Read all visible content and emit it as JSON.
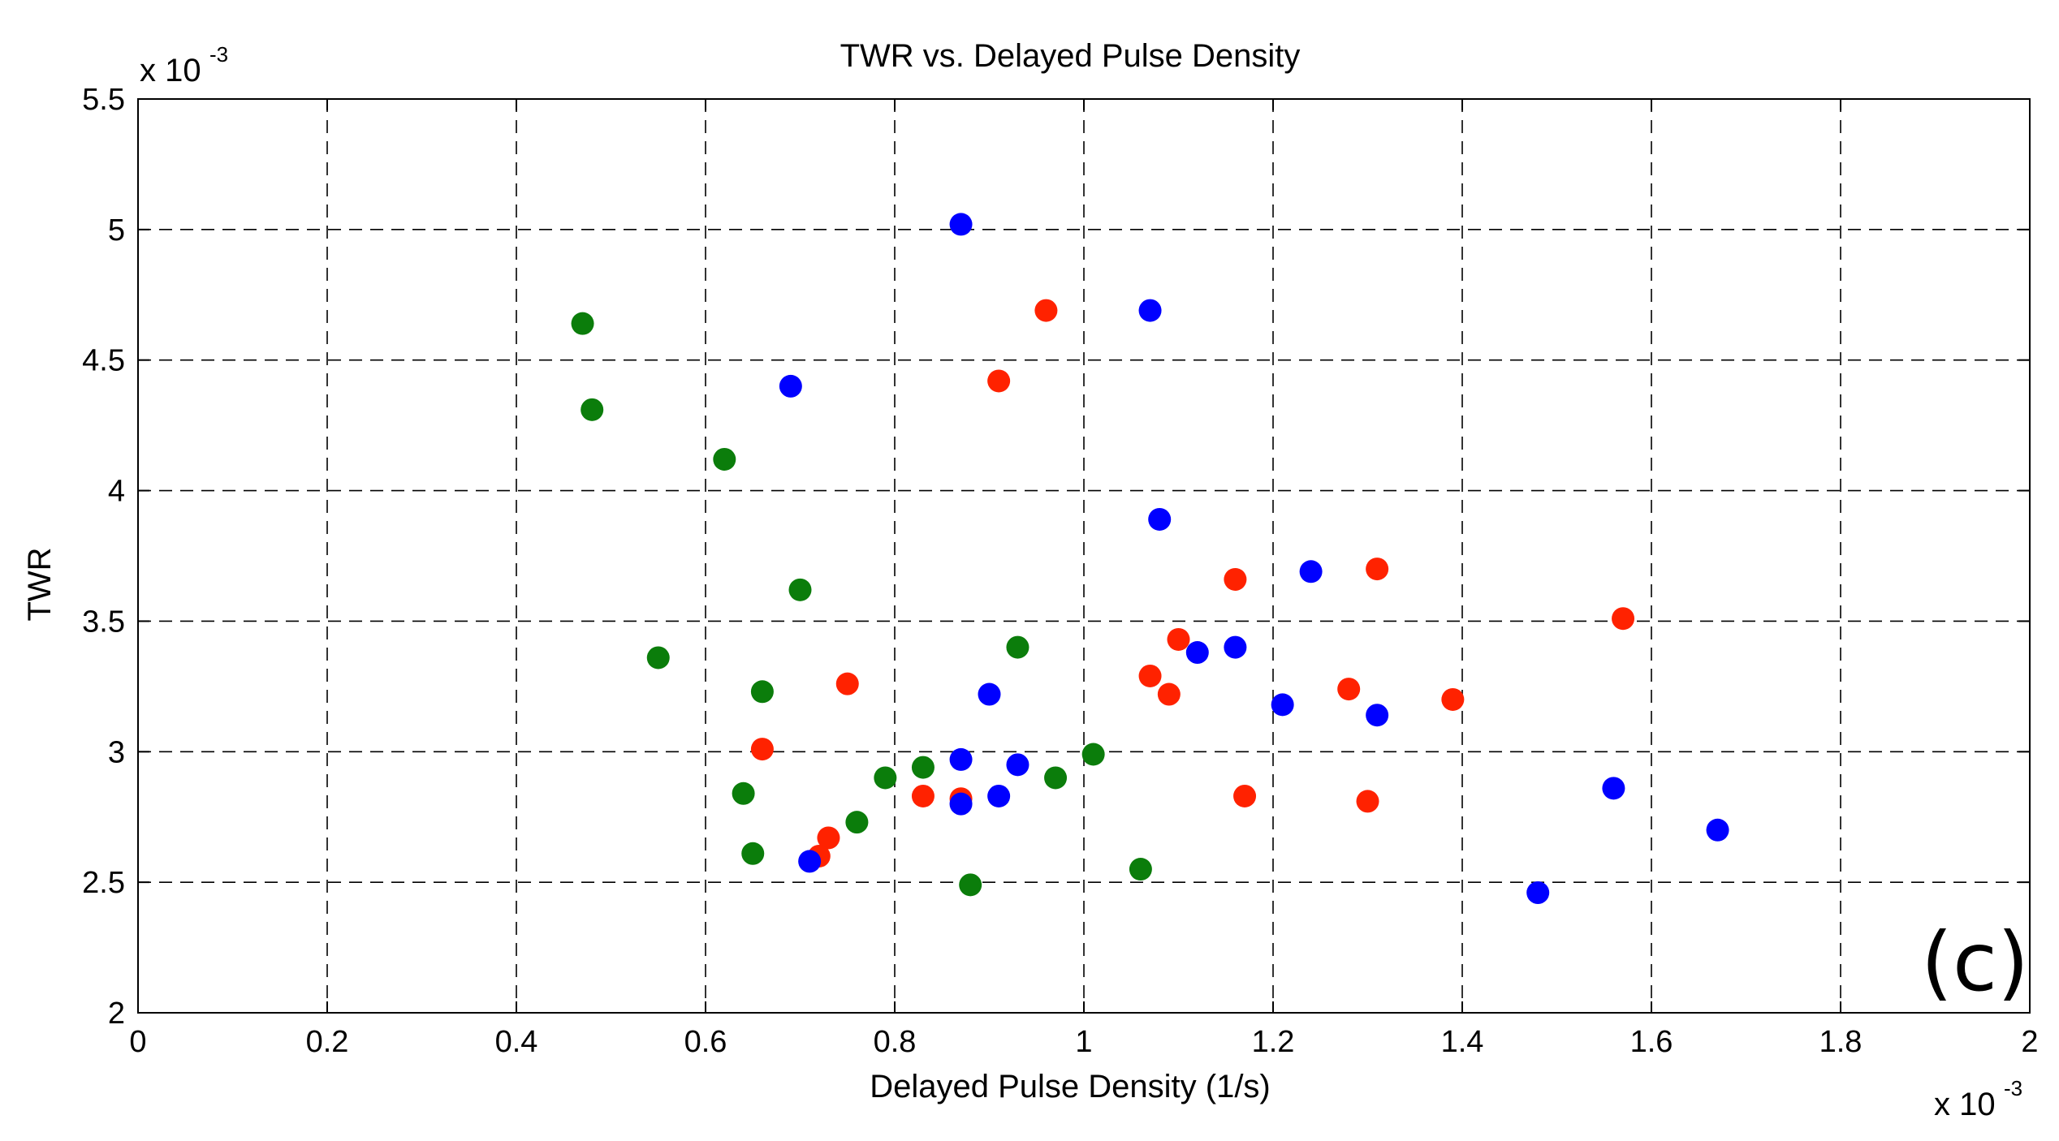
{
  "chart_data": {
    "type": "scatter",
    "title": "TWR vs. Delayed Pulse Density",
    "xlabel": "Delayed Pulse Density (1/s)",
    "ylabel": "TWR",
    "x_multiplier_label": "x 10",
    "x_multiplier_exp": "-3",
    "y_multiplier_label": "x 10",
    "y_multiplier_exp": "-3",
    "panel_label": "(c)",
    "xlim": [
      0,
      2
    ],
    "ylim": [
      2,
      5.5
    ],
    "x_ticks": [
      0,
      0.2,
      0.4,
      0.6,
      0.8,
      1,
      1.2,
      1.4,
      1.6,
      1.8,
      2
    ],
    "x_tick_labels": [
      "0",
      "0.2",
      "0.4",
      "0.6",
      "0.8",
      "1",
      "1.2",
      "1.4",
      "1.6",
      "1.8",
      "2"
    ],
    "y_ticks": [
      2,
      2.5,
      3,
      3.5,
      4,
      4.5,
      5,
      5.5
    ],
    "y_tick_labels": [
      "2",
      "2.5",
      "3",
      "3.5",
      "4",
      "4.5",
      "5",
      "5.5"
    ],
    "grid": true,
    "series": [
      {
        "name": "green",
        "color": "#0b7d0b",
        "points": [
          [
            0.47,
            4.64
          ],
          [
            0.48,
            4.31
          ],
          [
            0.62,
            4.12
          ],
          [
            0.7,
            3.62
          ],
          [
            0.55,
            3.36
          ],
          [
            0.66,
            3.23
          ],
          [
            0.64,
            2.84
          ],
          [
            0.65,
            2.61
          ],
          [
            0.76,
            2.73
          ],
          [
            0.79,
            2.9
          ],
          [
            0.83,
            2.94
          ],
          [
            0.93,
            3.4
          ],
          [
            0.97,
            2.9
          ],
          [
            1.01,
            2.99
          ],
          [
            0.88,
            2.49
          ],
          [
            1.06,
            2.55
          ]
        ]
      },
      {
        "name": "red",
        "color": "#ff2200",
        "points": [
          [
            0.96,
            4.69
          ],
          [
            0.91,
            4.42
          ],
          [
            0.75,
            3.26
          ],
          [
            0.66,
            3.01
          ],
          [
            0.73,
            2.67
          ],
          [
            0.72,
            2.6
          ],
          [
            0.83,
            2.83
          ],
          [
            0.87,
            2.82
          ],
          [
            1.07,
            3.29
          ],
          [
            1.09,
            3.22
          ],
          [
            1.1,
            3.43
          ],
          [
            1.16,
            3.66
          ],
          [
            1.17,
            2.83
          ],
          [
            1.28,
            3.24
          ],
          [
            1.3,
            2.81
          ],
          [
            1.31,
            3.7
          ],
          [
            1.39,
            3.2
          ],
          [
            1.57,
            3.51
          ]
        ]
      },
      {
        "name": "blue",
        "color": "#0000ff",
        "points": [
          [
            0.87,
            5.02
          ],
          [
            0.69,
            4.4
          ],
          [
            1.07,
            4.69
          ],
          [
            1.08,
            3.89
          ],
          [
            0.9,
            3.22
          ],
          [
            0.87,
            2.97
          ],
          [
            0.87,
            2.8
          ],
          [
            0.91,
            2.83
          ],
          [
            0.93,
            2.95
          ],
          [
            0.71,
            2.58
          ],
          [
            1.12,
            3.38
          ],
          [
            1.16,
            3.4
          ],
          [
            1.21,
            3.18
          ],
          [
            1.24,
            3.69
          ],
          [
            1.31,
            3.14
          ],
          [
            1.48,
            2.46
          ],
          [
            1.56,
            2.86
          ],
          [
            1.67,
            2.7
          ]
        ]
      }
    ]
  }
}
